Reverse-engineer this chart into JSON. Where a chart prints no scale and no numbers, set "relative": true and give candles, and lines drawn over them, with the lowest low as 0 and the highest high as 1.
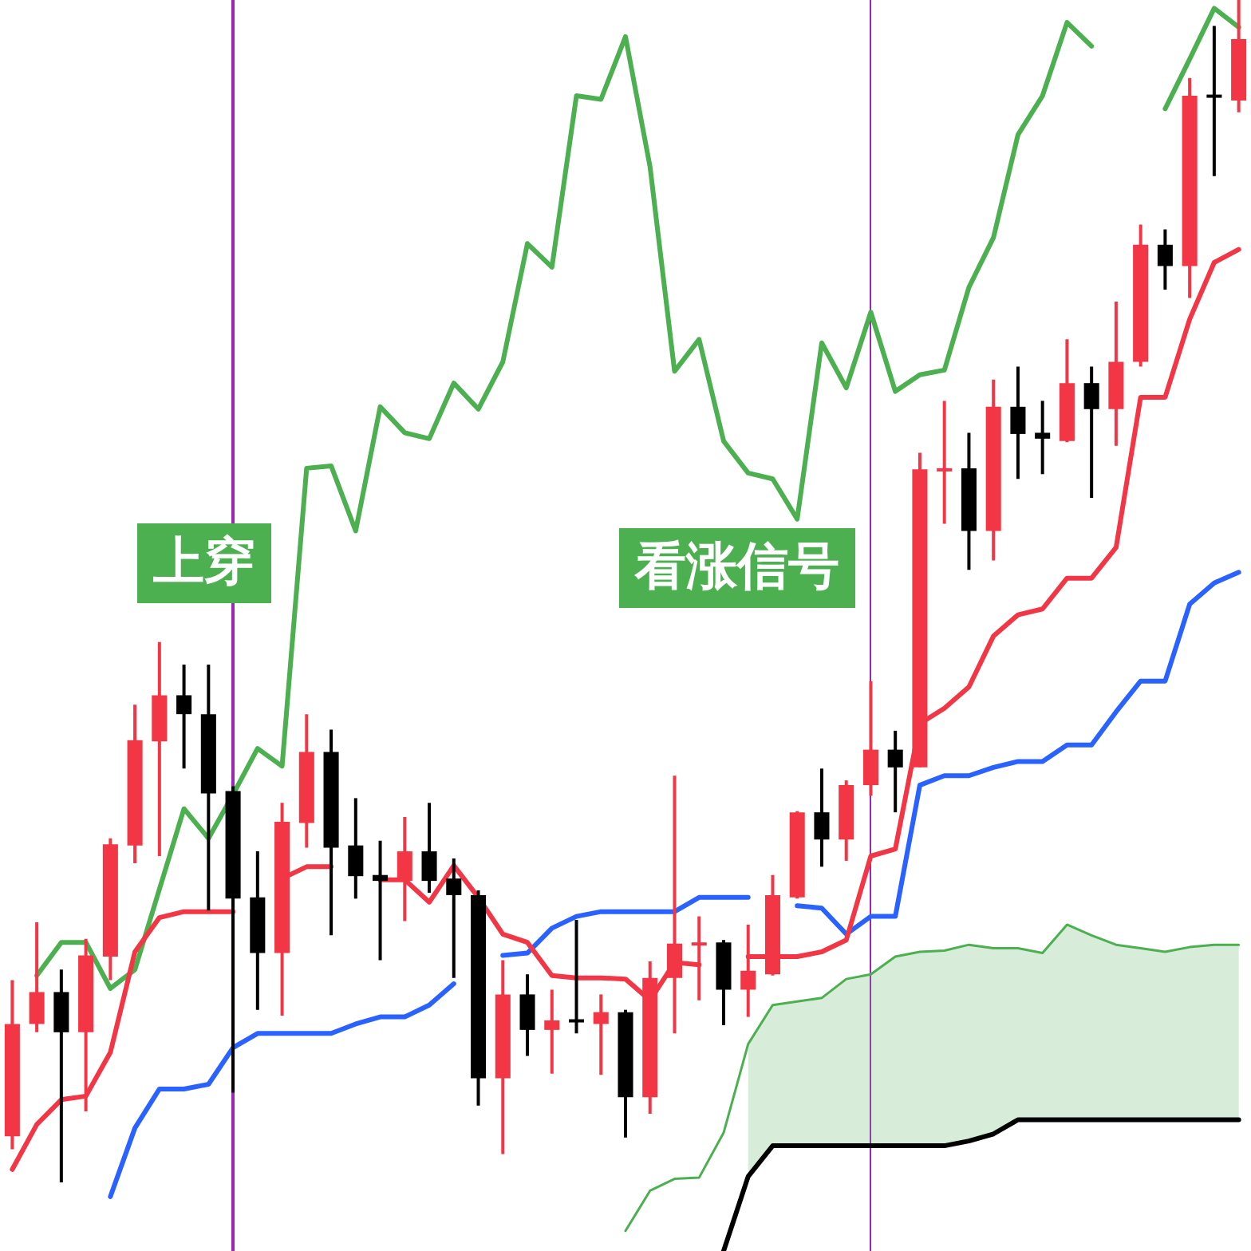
{
  "chart_data": {
    "type": "candlestick",
    "relative": true,
    "legend": false,
    "categories": [
      null,
      null,
      null,
      null,
      null,
      null,
      null,
      null,
      null,
      null,
      null,
      null,
      null,
      null,
      null,
      null,
      null,
      null,
      null,
      null,
      null,
      null,
      null,
      null,
      null,
      null,
      null,
      null,
      null,
      null,
      null,
      null,
      null,
      null,
      null,
      null,
      null,
      null,
      null,
      null,
      null,
      null,
      null,
      null,
      null,
      null,
      null,
      null,
      null,
      null,
      null
    ],
    "ohlc": [
      [
        0.039,
        0.171,
        0.028,
        0.134
      ],
      [
        0.134,
        0.22,
        0.127,
        0.161
      ],
      [
        0.161,
        0.18,
        0,
        0.127
      ],
      [
        0.127,
        0.206,
        0.06,
        0.192
      ],
      [
        0.191,
        0.291,
        0.171,
        0.286
      ],
      [
        0.285,
        0.404,
        0.27,
        0.374
      ],
      [
        0.373,
        0.457,
        0.276,
        0.412
      ],
      [
        0.412,
        0.438,
        0.35,
        0.396
      ],
      [
        0.396,
        0.438,
        0.23,
        0.329
      ],
      [
        0.331,
        0.335,
        0.076,
        0.24
      ],
      [
        0.241,
        0.28,
        0.146,
        0.194
      ],
      [
        0.194,
        0.321,
        0.141,
        0.305
      ],
      [
        0.304,
        0.396,
        0.283,
        0.364
      ],
      [
        0.364,
        0.383,
        0.209,
        0.283
      ],
      [
        0.285,
        0.325,
        0.24,
        0.259
      ],
      [
        0.26,
        0.289,
        0.188,
        0.255
      ],
      [
        0.255,
        0.309,
        0.221,
        0.28
      ],
      [
        0.28,
        0.321,
        0.245,
        0.255
      ],
      [
        0.257,
        0.274,
        0.173,
        0.243
      ],
      [
        0.243,
        0.247,
        0.065,
        0.088
      ],
      [
        0.088,
        0.188,
        0.024,
        0.159
      ],
      [
        0.159,
        0.176,
        0.107,
        0.129
      ],
      [
        0.129,
        0.163,
        0.092,
        0.137
      ],
      [
        0.138,
        0.222,
        0.126,
        0.137
      ],
      [
        0.134,
        0.159,
        0.091,
        0.144
      ],
      [
        0.144,
        0.146,
        0.038,
        0.072
      ],
      [
        0.072,
        0.187,
        0.058,
        0.173
      ],
      [
        0.173,
        0.344,
        0.126,
        0.202
      ],
      [
        0.202,
        0.225,
        0.154,
        0.203
      ],
      [
        0.203,
        0.205,
        0.133,
        0.163
      ],
      [
        0.163,
        0.218,
        0.14,
        0.179
      ],
      [
        0.176,
        0.26,
        0.175,
        0.243
      ],
      [
        0.241,
        0.314,
        0.24,
        0.313
      ],
      [
        0.313,
        0.35,
        0.267,
        0.29
      ],
      [
        0.29,
        0.34,
        0.272,
        0.336
      ],
      [
        0.336,
        0.424,
        0.327,
        0.366
      ],
      [
        0.366,
        0.382,
        0.313,
        0.351
      ],
      [
        0.351,
        0.617,
        0.351,
        0.603
      ],
      [
        0.603,
        0.661,
        0.557,
        0.604
      ],
      [
        0.604,
        0.634,
        0.518,
        0.551
      ],
      [
        0.551,
        0.679,
        0.526,
        0.656
      ],
      [
        0.656,
        0.69,
        0.595,
        0.633
      ],
      [
        0.634,
        0.661,
        0.599,
        0.629
      ],
      [
        0.627,
        0.713,
        0.626,
        0.676
      ],
      [
        0.676,
        0.69,
        0.579,
        0.654
      ],
      [
        0.654,
        0.745,
        0.623,
        0.694
      ],
      [
        0.694,
        0.81,
        0.69,
        0.793
      ],
      [
        0.793,
        0.806,
        0.755,
        0.775
      ],
      [
        0.775,
        0.934,
        0.748,
        0.919
      ],
      [
        0.92,
        0.978,
        0.851,
        0.919
      ],
      [
        0.915,
        1,
        0.905,
        0.967
      ]
    ],
    "colors": [
      "#f23645",
      "#f23645",
      "#000000",
      "#f23645",
      "#f23645",
      "#f23645",
      "#f23645",
      "#000000",
      "#000000",
      "#000000",
      "#000000",
      "#f23645",
      "#f23645",
      "#000000",
      "#000000",
      "#000000",
      "#f23645",
      "#000000",
      "#000000",
      "#000000",
      "#f23645",
      "#000000",
      "#f23645",
      "#000000",
      "#f23645",
      "#000000",
      "#f23645",
      "#f23645",
      "#f23645",
      "#000000",
      "#f23645",
      "#f23645",
      "#f23645",
      "#000000",
      "#f23645",
      "#f23645",
      "#000000",
      "#f23645",
      "#f23645",
      "#000000",
      "#f23645",
      "#000000",
      "#000000",
      "#f23645",
      "#000000",
      "#f23645",
      "#f23645",
      "#000000",
      "#f23645",
      "#000000",
      "#f23645"
    ],
    "series": [
      {
        "type": "line",
        "color": "#f23645",
        "values": [
          0.011,
          0.049,
          0.07,
          0.073,
          0.11,
          0.195,
          0.224,
          0.229,
          0.229,
          0.229,
          null,
          0.257,
          0.267,
          0.267,
          null,
          0.256,
          0.256,
          0.237,
          0.268,
          0.241,
          0.21,
          0.203,
          0.175,
          0.173,
          0.173,
          0.172,
          0.154,
          0.186,
          0.184,
          null,
          0.191,
          0.191,
          0.191,
          0.195,
          0.205,
          0.276,
          0.282,
          0.388,
          0.401,
          0.419,
          0.462,
          0.48,
          0.485,
          0.511,
          0.511,
          0.537,
          0.664,
          0.664,
          0.73,
          0.778,
          0.789
        ]
      },
      {
        "type": "line",
        "color": "#2962ff",
        "values": [
          null,
          null,
          null,
          null,
          -0.012,
          0.046,
          0.079,
          0.079,
          0.083,
          0.114,
          0.126,
          0.126,
          0.126,
          0.126,
          0.134,
          0.14,
          0.14,
          0.15,
          0.168,
          null,
          0.192,
          0.194,
          0.215,
          0.225,
          0.229,
          0.229,
          0.229,
          0.229,
          0.241,
          0.241,
          0.241,
          null,
          0.234,
          0.232,
          0.21,
          0.225,
          0.225,
          0.336,
          0.344,
          0.344,
          0.351,
          0.356,
          0.356,
          0.37,
          0.37,
          0.398,
          0.424,
          0.424,
          0.489,
          0.507,
          0.516
        ]
      },
      {
        "type": "line",
        "color": "#4caf50",
        "values": [
          null,
          0.175,
          0.203,
          0.203,
          0.164,
          0.18,
          0.248,
          0.316,
          0.291,
          0.328,
          0.367,
          0.352,
          0.604,
          0.606,
          0.551,
          0.656,
          0.634,
          0.629,
          0.676,
          0.654,
          0.694,
          0.794,
          0.774,
          0.919,
          0.916,
          0.969,
          0.859,
          0.686,
          0.713,
          0.627,
          0.6,
          0.595,
          0.561,
          0.71,
          0.672,
          0.736,
          0.669,
          0.683,
          0.687,
          0.757,
          0.799,
          0.886,
          0.919,
          0.981,
          0.961,
          null,
          null,
          0.908,
          0.95,
          0.993,
          0.977
        ]
      },
      {
        "type": "line",
        "color": "#4caf50",
        "values": [
          null,
          null,
          null,
          null,
          null,
          null,
          null,
          null,
          null,
          null,
          null,
          null,
          null,
          null,
          null,
          null,
          null,
          null,
          null,
          null,
          null,
          null,
          null,
          null,
          null,
          -0.041,
          -0.007,
          0.003,
          0.004,
          0.042,
          0.117,
          0.15,
          0.153,
          0.156,
          0.172,
          0.176,
          0.191,
          0.195,
          0.196,
          0.201,
          0.198,
          0.198,
          0.194,
          0.218,
          0.209,
          0.201,
          0.198,
          0.195,
          0.199,
          0.201,
          0.201
        ],
        "upper": [
          null,
          null,
          null,
          null,
          null,
          null,
          null,
          null,
          null,
          null,
          null,
          null,
          null,
          null,
          null,
          null,
          null,
          null,
          null,
          null,
          null,
          null,
          null,
          null,
          null,
          null,
          null,
          null,
          null,
          null,
          0.117,
          0.15,
          0.153,
          0.156,
          0.172,
          0.176,
          0.191,
          0.195,
          0.196,
          0.201,
          0.198,
          0.198,
          0.194,
          0.218,
          0.209,
          0.201,
          0.198,
          0.195,
          0.199,
          0.201,
          0.201
        ],
        "lower": [
          null,
          null,
          null,
          null,
          null,
          null,
          null,
          null,
          null,
          null,
          null,
          null,
          null,
          null,
          null,
          null,
          null,
          null,
          null,
          null,
          null,
          null,
          null,
          null,
          null,
          null,
          null,
          null,
          null,
          null,
          0.005,
          0.031,
          0.031,
          0.031,
          0.031,
          0.031,
          0.031,
          0.031,
          0.031,
          0.035,
          0.041,
          0.053,
          0.053,
          0.053,
          0.053,
          0.053,
          0.053,
          0.053,
          0.053,
          0.053,
          0.053
        ]
      },
      {
        "type": "line",
        "color": "#000000",
        "values": [
          null,
          null,
          null,
          null,
          null,
          null,
          null,
          null,
          null,
          null,
          null,
          null,
          null,
          null,
          null,
          null,
          null,
          null,
          null,
          null,
          null,
          null,
          null,
          null,
          null,
          null,
          null,
          null,
          null,
          -0.058,
          0.005,
          0.031,
          0.031,
          0.031,
          0.031,
          0.031,
          0.031,
          0.031,
          0.031,
          0.035,
          0.041,
          0.053,
          0.053,
          0.053,
          0.053,
          0.053,
          0.053,
          0.053,
          0.053,
          0.053,
          0.053
        ]
      }
    ],
    "annotations": [
      "上穿",
      "看涨信号"
    ]
  }
}
